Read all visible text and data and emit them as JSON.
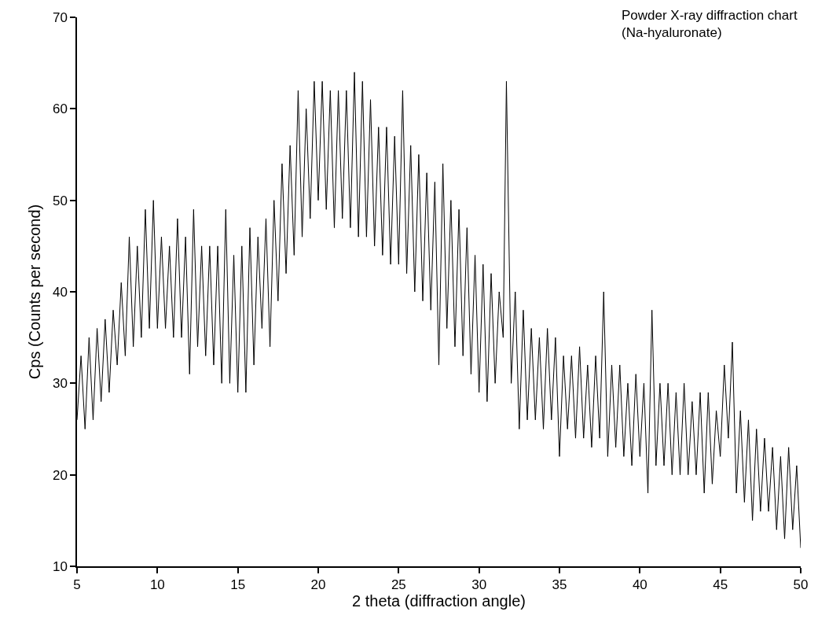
{
  "chart_data": {
    "type": "line",
    "xlabel": "2 theta (diffraction angle)",
    "ylabel": "Cps (Counts per second)",
    "annotations": [
      "Powder X-ray diffraction chart\n(Na-hyaluronate)"
    ],
    "x": [
      5,
      5.25,
      5.5,
      5.75,
      6,
      6.25,
      6.5,
      6.75,
      7,
      7.25,
      7.5,
      7.75,
      8,
      8.25,
      8.5,
      8.75,
      9,
      9.25,
      9.5,
      9.75,
      10,
      10.25,
      10.5,
      10.75,
      11,
      11.25,
      11.5,
      11.75,
      12,
      12.25,
      12.5,
      12.75,
      13,
      13.25,
      13.5,
      13.75,
      14,
      14.25,
      14.5,
      14.75,
      15,
      15.25,
      15.5,
      15.75,
      16,
      16.25,
      16.5,
      16.75,
      17,
      17.25,
      17.5,
      17.75,
      18,
      18.25,
      18.5,
      18.75,
      19,
      19.25,
      19.5,
      19.75,
      20,
      20.25,
      20.5,
      20.75,
      21,
      21.25,
      21.5,
      21.75,
      22,
      22.25,
      22.5,
      22.75,
      23,
      23.25,
      23.5,
      23.75,
      24,
      24.25,
      24.5,
      24.75,
      25,
      25.25,
      25.5,
      25.75,
      26,
      26.25,
      26.5,
      26.75,
      27,
      27.25,
      27.5,
      27.75,
      28,
      28.25,
      28.5,
      28.75,
      29,
      29.25,
      29.5,
      29.75,
      30,
      30.25,
      30.5,
      30.75,
      31,
      31.25,
      31.5,
      31.7,
      32,
      32.25,
      32.5,
      32.75,
      33,
      33.25,
      33.5,
      33.75,
      34,
      34.25,
      34.5,
      34.75,
      35,
      35.25,
      35.5,
      35.75,
      36,
      36.25,
      36.5,
      36.75,
      37,
      37.25,
      37.5,
      37.75,
      38,
      38.25,
      38.5,
      38.75,
      39,
      39.25,
      39.5,
      39.75,
      40,
      40.25,
      40.5,
      40.75,
      41,
      41.25,
      41.5,
      41.75,
      42,
      42.25,
      42.5,
      42.75,
      43,
      43.25,
      43.5,
      43.75,
      44,
      44.25,
      44.5,
      44.75,
      45,
      45.25,
      45.5,
      45.75,
      46,
      46.25,
      46.5,
      46.75,
      47,
      47.25,
      47.5,
      47.75,
      48,
      48.25,
      48.5,
      48.75,
      49,
      49.25,
      49.5,
      49.75,
      50
    ],
    "values": [
      26,
      33,
      25,
      35,
      26,
      36,
      28,
      37,
      29,
      38,
      32,
      41,
      33,
      46,
      34,
      45,
      35,
      49,
      36,
      50,
      36,
      46,
      36,
      45,
      35,
      48,
      35,
      46,
      31,
      49,
      34,
      45,
      33,
      45,
      32,
      45,
      30,
      49,
      30,
      44,
      29,
      45,
      29,
      47,
      32,
      46,
      36,
      48,
      34,
      50,
      39,
      54,
      42,
      56,
      44,
      62,
      46,
      60,
      48,
      63,
      50,
      63,
      49,
      62,
      47,
      62,
      48,
      62,
      47,
      64,
      46,
      63,
      46,
      61,
      45,
      58,
      44,
      58,
      43,
      57,
      43,
      62,
      42,
      56,
      40,
      55,
      39,
      53,
      38,
      52,
      32,
      54,
      36,
      50,
      34,
      49,
      33,
      47,
      31,
      44,
      29,
      43,
      28,
      42,
      30,
      40,
      35,
      63,
      30,
      40,
      25,
      38,
      26,
      36,
      26,
      35,
      25,
      36,
      26,
      35,
      22,
      33,
      25,
      33,
      24,
      34,
      24,
      32,
      23,
      33,
      24,
      40,
      22,
      32,
      23,
      32,
      22,
      30,
      21,
      31,
      22,
      30,
      18,
      38,
      21,
      30,
      21,
      30,
      20,
      29,
      20,
      30,
      20,
      28,
      20,
      29,
      18,
      29,
      19,
      27,
      22,
      32,
      24,
      34.5,
      18,
      27,
      17,
      26,
      15,
      25,
      16,
      24,
      16,
      23,
      14,
      22,
      13,
      23,
      14,
      21,
      12
    ],
    "color": "#000000",
    "xlim": [
      5,
      50
    ],
    "ylim": [
      10,
      70
    ],
    "xticks": [
      5,
      10,
      15,
      20,
      25,
      30,
      35,
      40,
      45,
      50
    ],
    "yticks": [
      10,
      20,
      30,
      40,
      50,
      60,
      70
    ],
    "grid": false,
    "marker": "none",
    "line_style": "solid"
  }
}
